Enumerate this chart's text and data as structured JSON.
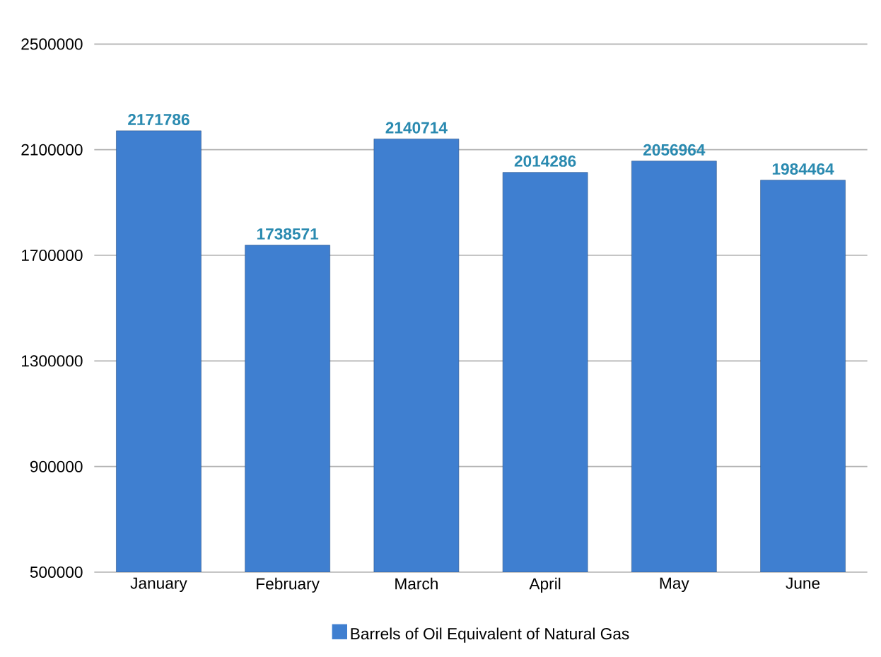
{
  "chart_data": {
    "type": "bar",
    "categories": [
      "January",
      "February",
      "March",
      "April",
      "May",
      "June"
    ],
    "series": [
      {
        "name": "Barrels of Oil Equivalent of Natural Gas",
        "color": "#3f7fd0",
        "values": [
          2171786,
          1738571,
          2140714,
          2014286,
          2056964,
          1984464
        ]
      }
    ],
    "ylim": [
      500000,
      2500000
    ],
    "yticks": [
      500000,
      900000,
      1300000,
      1700000,
      2100000,
      2500000
    ],
    "grid": "y",
    "data_labels": true,
    "legend": "bottom"
  }
}
